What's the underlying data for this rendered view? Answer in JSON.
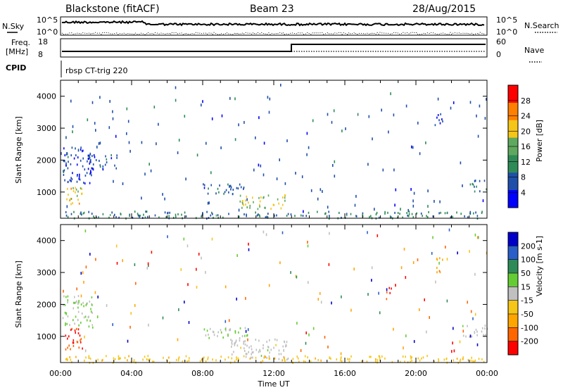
{
  "header": {
    "station": "Blackstone (fitACF)",
    "beam": "Beam 23",
    "date": "28/Aug/2015"
  },
  "top_panels": {
    "nsky_label": "N.Sky",
    "nsky_ticks": [
      "10^5",
      "10^0"
    ],
    "nsearch_label": "N.Search",
    "nsearch_ticks": [
      "10^5",
      "10^0"
    ],
    "freq_label": "Freq.",
    "freq_unit": "[MHz]",
    "freq_ticks": [
      "18",
      "8"
    ],
    "nave_label": "Nave",
    "nave_ticks": [
      "60",
      "0"
    ],
    "cpid_label": "CPID",
    "cpid_text": "rbsp CT-trig 220"
  },
  "colors": {
    "power": [
      "#0000ff",
      "#1f4fa8",
      "#2e8b57",
      "#5fa85f",
      "#f5c518",
      "#ff7f00",
      "#ff0000"
    ],
    "velocity": [
      "#0000c8",
      "#2a5ec8",
      "#2e8b57",
      "#66cc33",
      "#c0c0c0",
      "#f5c518",
      "#ffa500",
      "#ff6600",
      "#ff0000"
    ]
  },
  "chart_data": [
    {
      "type": "heatmap",
      "panel": "power",
      "ylabel": "Slant Range [km]",
      "yticks": [
        "4000",
        "3000",
        "2000",
        "1000"
      ],
      "ylim": [
        180,
        4500
      ],
      "xticks": [
        "00:00",
        "04:00",
        "08:00",
        "12:00",
        "16:00",
        "20:00",
        "00:00"
      ],
      "xlim_hours": [
        0,
        24
      ],
      "colorbar_label": "Power [dB]",
      "colorbar_ticks": [
        "28",
        "24",
        "20",
        "16",
        "12",
        "8",
        "4"
      ],
      "range": [
        0,
        32
      ],
      "clusters": [
        {
          "t0": 0.1,
          "t1": 1.2,
          "r0": 600,
          "r1": 1200,
          "v": 20
        },
        {
          "t0": 0.1,
          "t1": 1.8,
          "r0": 1300,
          "r1": 2500,
          "v": 6
        },
        {
          "t0": 1.5,
          "t1": 3.2,
          "r0": 1700,
          "r1": 2200,
          "v": 6
        },
        {
          "t0": 8.0,
          "t1": 10.5,
          "r0": 950,
          "r1": 1300,
          "v": 7
        },
        {
          "t0": 10.0,
          "t1": 12.7,
          "r0": 500,
          "r1": 950,
          "v": 18
        },
        {
          "t0": 0.2,
          "t1": 23.8,
          "r0": 200,
          "r1": 420,
          "v": 10
        },
        {
          "t0": 23.0,
          "t1": 24.0,
          "r0": 1000,
          "r1": 1400,
          "v": 8
        },
        {
          "t0": 21.0,
          "t1": 21.5,
          "r0": 3000,
          "r1": 3500,
          "v": 6
        }
      ]
    },
    {
      "type": "heatmap",
      "panel": "velocity",
      "ylabel": "Slant Range [km]",
      "yticks": [
        "4000",
        "3000",
        "2000",
        "1000"
      ],
      "ylim": [
        180,
        4500
      ],
      "xticks": [
        "00:00",
        "04:00",
        "08:00",
        "12:00",
        "16:00",
        "20:00",
        "00:00"
      ],
      "xlim_hours": [
        0,
        24
      ],
      "xlabel": "Time UT",
      "colorbar_label": "Velocity [m s-1]",
      "colorbar_ticks": [
        "200",
        "100",
        "50",
        "15",
        "-15",
        "-50",
        "-100",
        "-200"
      ],
      "range": [
        -250,
        250
      ],
      "clusters": [
        {
          "t0": 0.1,
          "t1": 1.2,
          "r0": 600,
          "r1": 1300,
          "v": -200
        },
        {
          "t0": 0.1,
          "t1": 1.8,
          "r0": 1300,
          "r1": 2300,
          "v": 30
        },
        {
          "t0": 8.0,
          "t1": 10.5,
          "r0": 950,
          "r1": 1300,
          "v": 20
        },
        {
          "t0": 9.5,
          "t1": 12.8,
          "r0": 300,
          "r1": 950,
          "v": 0
        },
        {
          "t0": 0.2,
          "t1": 23.8,
          "r0": 200,
          "r1": 420,
          "v": -60
        },
        {
          "t0": 22.5,
          "t1": 24.0,
          "r0": 1000,
          "r1": 1400,
          "v": 0
        },
        {
          "t0": 18.2,
          "t1": 18.6,
          "r0": 2200,
          "r1": 2600,
          "v": -200
        },
        {
          "t0": 21.0,
          "t1": 21.5,
          "r0": 3000,
          "r1": 3500,
          "v": -120
        }
      ]
    }
  ]
}
